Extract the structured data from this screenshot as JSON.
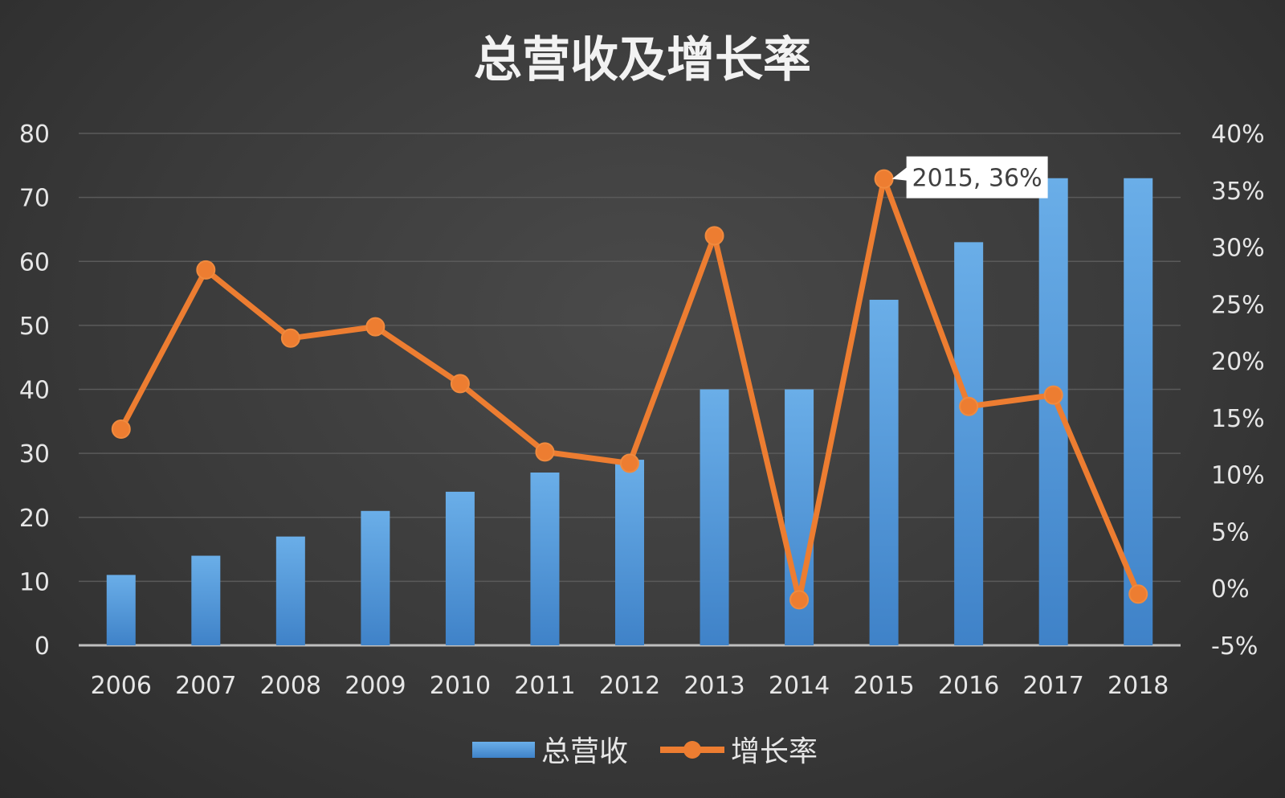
{
  "chart_data": {
    "type": "bar",
    "title": "总营收及增长率",
    "categories": [
      "2006",
      "2007",
      "2008",
      "2009",
      "2010",
      "2011",
      "2012",
      "2013",
      "2014",
      "2015",
      "2016",
      "2017",
      "2018"
    ],
    "series": [
      {
        "name": "总营收",
        "type": "bar",
        "axis": "left",
        "values": [
          11,
          14,
          17,
          21,
          24,
          27,
          29,
          40,
          40,
          54,
          63,
          73,
          73
        ]
      },
      {
        "name": "增长率",
        "type": "line",
        "axis": "right",
        "values": [
          14,
          28,
          22,
          23,
          18,
          12,
          11,
          31,
          -1,
          36,
          16,
          17,
          -0.5
        ]
      }
    ],
    "y_left": {
      "min": 0,
      "max": 80,
      "step": 10,
      "ticks": [
        "0",
        "10",
        "20",
        "30",
        "40",
        "50",
        "60",
        "70",
        "80"
      ]
    },
    "y_right": {
      "min": -5,
      "max": 40,
      "step": 5,
      "ticks": [
        "-5%",
        "0%",
        "5%",
        "10%",
        "15%",
        "20%",
        "25%",
        "30%",
        "35%",
        "40%"
      ]
    },
    "grid": true,
    "legend": "bottom",
    "annotation": {
      "category": "2015",
      "text": "2015, 36%"
    },
    "colors": {
      "bar": "#5b9bd5",
      "line": "#ed7d31",
      "grid": "#5a5a5a",
      "text": "#e6e6e6"
    }
  }
}
